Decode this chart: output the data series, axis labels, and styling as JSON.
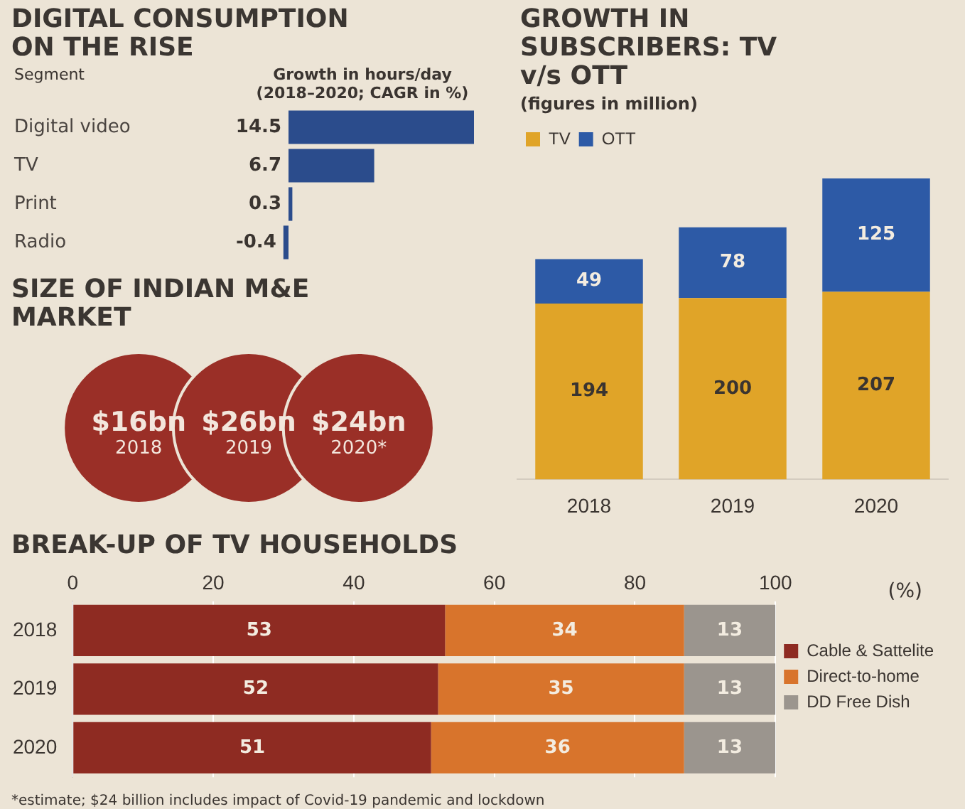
{
  "chart_data": [
    {
      "type": "bar",
      "title": "DIGITAL CONSUMPTION ON THE RISE",
      "ylabel": "Segment",
      "xlabel": "Growth in hours/day (2018–2020; CAGR in %)",
      "orientation": "horizontal",
      "categories": [
        "Digital video",
        "TV",
        "Print",
        "Radio"
      ],
      "values": [
        14.5,
        6.7,
        0.3,
        -0.4
      ],
      "color": "#2b4c8c",
      "data_labels": true
    },
    {
      "type": "other",
      "title": "SIZE OF INDIAN M&E MARKET",
      "categories": [
        "2018",
        "2019",
        "2020*"
      ],
      "values": [
        16,
        26,
        24
      ],
      "value_labels": [
        "$16bn",
        "$26bn",
        "$24bn"
      ],
      "color": "#9a2f27"
    },
    {
      "type": "bar",
      "title": "GROWTH IN SUBSCRIBERS: TV v/s OTT",
      "subtitle": "(figures in million)",
      "categories": [
        "2018",
        "2019",
        "2020"
      ],
      "stacked": true,
      "legend": "top left",
      "data_labels": true,
      "series": [
        {
          "name": "TV",
          "color": "#e0a428",
          "values": [
            194,
            200,
            207
          ]
        },
        {
          "name": "OTT",
          "color": "#2d5aa6",
          "values": [
            49,
            78,
            125
          ]
        }
      ]
    },
    {
      "type": "bar",
      "title": "BREAK-UP OF TV HOUSEHOLDS",
      "xlabel": "(%)",
      "orientation": "horizontal",
      "stacked": true,
      "categories": [
        "2018",
        "2019",
        "2020"
      ],
      "xlim": [
        0,
        100
      ],
      "xticks": [
        0,
        20,
        40,
        60,
        80,
        100
      ],
      "grid": "x",
      "legend": "right",
      "data_labels": true,
      "annotations": [
        "*estimate; $24 billion includes impact of Covid-19 pandemic and lockdown"
      ],
      "series": [
        {
          "name": "Cable & Sattelite",
          "color": "#8e2b22",
          "values": [
            53,
            52,
            51
          ]
        },
        {
          "name": "Direct-to-home",
          "color": "#d8742c",
          "values": [
            34,
            35,
            36
          ]
        },
        {
          "name": "DD Free Dish",
          "color": "#9b958e",
          "values": [
            13,
            13,
            13
          ]
        }
      ]
    }
  ]
}
